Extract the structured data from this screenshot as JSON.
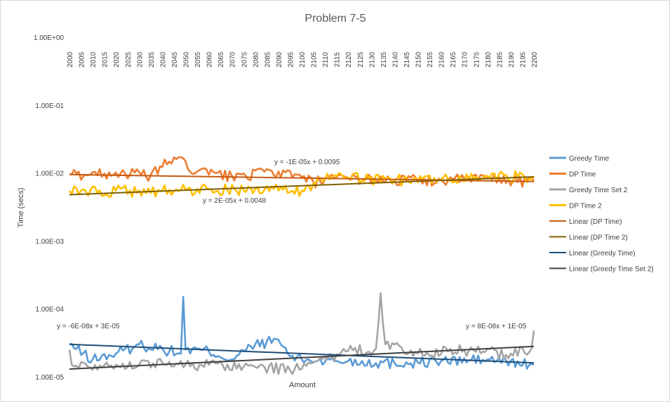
{
  "chart_data": {
    "type": "line",
    "title": "Problem 7-5",
    "xlabel": "Amount",
    "ylabel": "Time (secs)",
    "y_scale": "log",
    "ylim": [
      1e-05,
      1
    ],
    "y_ticks": [
      "1.00E+00",
      "1.00E-01",
      "1.00E-02",
      "1.00E-03",
      "1.00E-04",
      "1.00E-05"
    ],
    "x_ticks": [
      "2000",
      "2005",
      "2010",
      "2015",
      "2020",
      "2025",
      "2030",
      "2035",
      "2040",
      "2045",
      "2050",
      "2055",
      "2060",
      "2065",
      "2070",
      "2075",
      "2080",
      "2085",
      "2090",
      "2095",
      "2100",
      "2105",
      "2110",
      "2115",
      "2120",
      "2125",
      "2130",
      "2135",
      "2140",
      "2145",
      "2150",
      "2155",
      "2160",
      "2165",
      "2170",
      "2175",
      "2180",
      "2185",
      "2190",
      "2195",
      "2200"
    ],
    "x_position": "top",
    "grid": false,
    "legend_position": "right",
    "series": [
      {
        "name": "Greedy Time",
        "color": "#5b9bd5",
        "kind": "data",
        "keypoints": [
          [
            2000,
            3e-05
          ],
          [
            2010,
            1.8e-05
          ],
          [
            2020,
            2.2e-05
          ],
          [
            2030,
            3e-05
          ],
          [
            2040,
            2.6e-05
          ],
          [
            2048,
            2.2e-05
          ],
          [
            2049,
            0.00015
          ],
          [
            2050,
            2.5e-05
          ],
          [
            2060,
            2.4e-05
          ],
          [
            2070,
            1.8e-05
          ],
          [
            2080,
            3e-05
          ],
          [
            2090,
            3.5e-05
          ],
          [
            2095,
            2e-05
          ],
          [
            2100,
            1.8e-05
          ],
          [
            2120,
            1.7e-05
          ],
          [
            2140,
            1.6e-05
          ],
          [
            2160,
            1.7e-05
          ],
          [
            2180,
            1.8e-05
          ],
          [
            2200,
            1.5e-05
          ]
        ]
      },
      {
        "name": "DP Time",
        "color": "#ed7d31",
        "kind": "data",
        "keypoints": [
          [
            2000,
            0.0095
          ],
          [
            2020,
            0.0102
          ],
          [
            2035,
            0.0093
          ],
          [
            2045,
            0.017
          ],
          [
            2055,
            0.0105
          ],
          [
            2070,
            0.009
          ],
          [
            2090,
            0.0105
          ],
          [
            2105,
            0.0075
          ],
          [
            2120,
            0.0085
          ],
          [
            2140,
            0.008
          ],
          [
            2160,
            0.0078
          ],
          [
            2180,
            0.0085
          ],
          [
            2200,
            0.0075
          ]
        ]
      },
      {
        "name": "Greedy Time Set 2",
        "color": "#a5a5a5",
        "kind": "data",
        "keypoints": [
          [
            2000,
            2.5e-05
          ],
          [
            2001,
            1.5e-05
          ],
          [
            2020,
            1.5e-05
          ],
          [
            2040,
            1.6e-05
          ],
          [
            2060,
            1.5e-05
          ],
          [
            2080,
            1.4e-05
          ],
          [
            2100,
            1.3e-05
          ],
          [
            2120,
            2.4e-05
          ],
          [
            2132,
            2.6e-05
          ],
          [
            2134,
            0.00017
          ],
          [
            2136,
            3e-05
          ],
          [
            2150,
            2.2e-05
          ],
          [
            2170,
            2.5e-05
          ],
          [
            2190,
            2.2e-05
          ],
          [
            2199,
            2.6e-05
          ],
          [
            2200,
            4.8e-05
          ]
        ]
      },
      {
        "name": "DP Time 2",
        "color": "#ffc000",
        "kind": "data",
        "keypoints": [
          [
            2000,
            0.0055
          ],
          [
            2020,
            0.0055
          ],
          [
            2040,
            0.0055
          ],
          [
            2060,
            0.0058
          ],
          [
            2080,
            0.0058
          ],
          [
            2100,
            0.0055
          ],
          [
            2108,
            0.0085
          ],
          [
            2120,
            0.0085
          ],
          [
            2140,
            0.008
          ],
          [
            2160,
            0.008
          ],
          [
            2180,
            0.009
          ],
          [
            2200,
            0.009
          ]
        ]
      },
      {
        "name": "Linear (DP Time)",
        "color": "#c55a11",
        "kind": "trend",
        "equation": "y = -1E-05x + 0.0095",
        "keypoints": [
          [
            2000,
            0.0095
          ],
          [
            2200,
            0.0075
          ]
        ]
      },
      {
        "name": "Linear (DP Time 2)",
        "color": "#7f6000",
        "kind": "trend",
        "equation": "y = 2E-05x + 0.0048",
        "keypoints": [
          [
            2000,
            0.0048
          ],
          [
            2200,
            0.0088
          ]
        ]
      },
      {
        "name": "Linear (Greedy Time)",
        "color": "#1f4e79",
        "kind": "trend",
        "equation": "y = -6E-08x + 3E-05",
        "keypoints": [
          [
            2000,
            3e-05
          ],
          [
            2200,
            1.6e-05
          ]
        ]
      },
      {
        "name": "Linear (Greedy Time Set 2)",
        "color": "#404040",
        "kind": "trend",
        "equation": "y = 8E-08x + 1E-05",
        "keypoints": [
          [
            2000,
            1.3e-05
          ],
          [
            2200,
            2.8e-05
          ]
        ]
      }
    ]
  }
}
